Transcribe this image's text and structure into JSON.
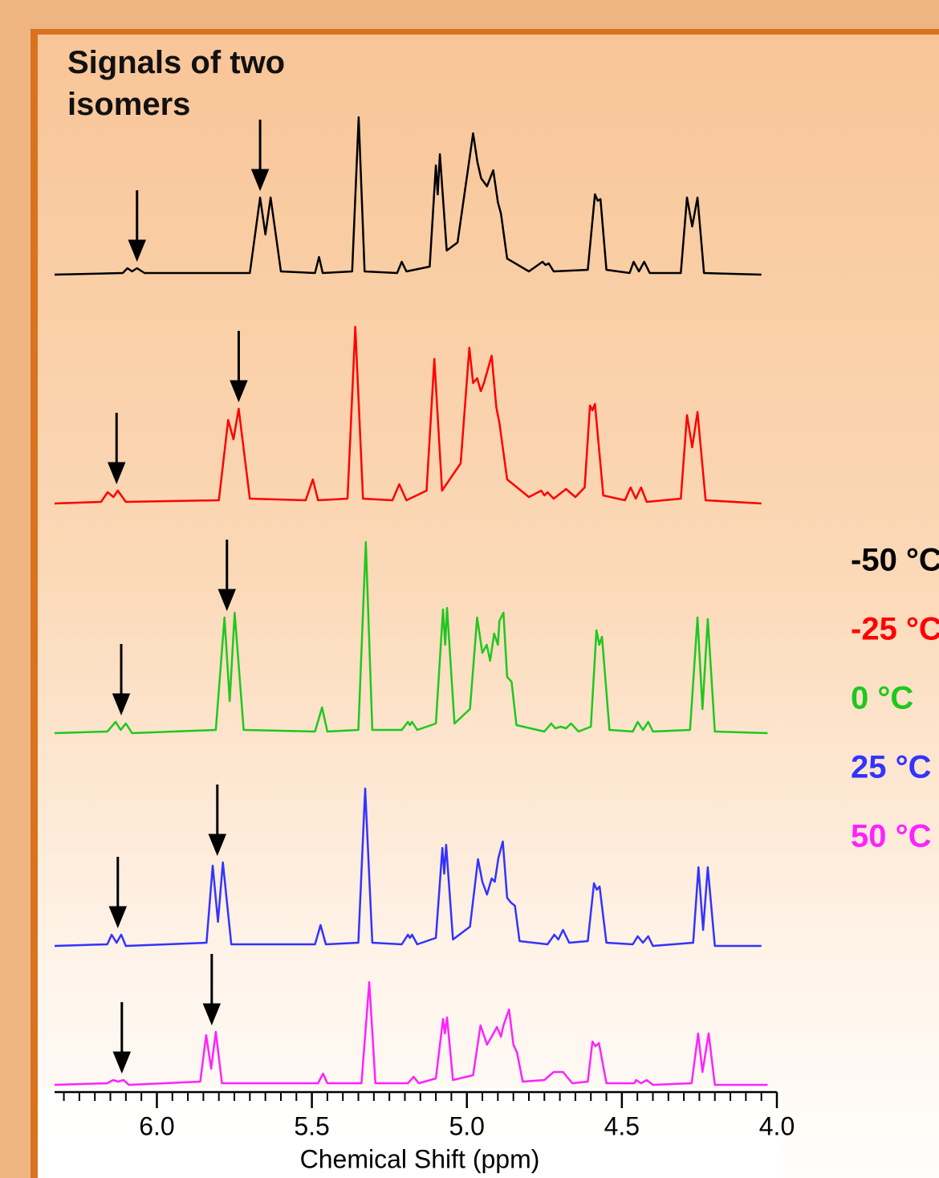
{
  "chart_data": {
    "type": "line",
    "title": "Signals of two isomers",
    "x_label": "Chemical Shift (ppm)",
    "xlim": [
      6.33,
      4.0
    ],
    "ylim": [
      0,
      120
    ],
    "xticks": [
      {
        "value": 6,
        "label": "6.0"
      },
      {
        "value": 5.5,
        "label": "5.5"
      },
      {
        "value": 5,
        "label": "5.0"
      },
      {
        "value": 4.5,
        "label": "4.5"
      },
      {
        "value": 4,
        "label": "4.0"
      }
    ],
    "xminorticks": [
      6.3,
      6.25,
      6.2,
      6.15,
      6.1,
      6.05,
      5.95,
      5.9,
      5.85,
      5.8,
      5.75,
      5.7,
      5.65,
      5.6,
      5.55,
      5.45,
      5.4,
      5.35,
      5.3,
      5.25,
      5.2,
      5.15,
      5.1,
      5.05,
      4.95,
      4.9,
      4.85,
      4.8,
      4.75,
      4.7,
      4.65,
      4.6,
      4.55,
      4.45,
      4.4,
      4.35,
      4.3,
      4.25,
      4.2,
      4.15,
      4.1,
      4.05
    ],
    "series": [
      {
        "name": "-50 °C",
        "color": "#000000",
        "arrows": [
          6.064,
          5.667
        ],
        "x": [
          6.33,
          6.11,
          6.095,
          6.08,
          6.064,
          6.04,
          5.7,
          5.667,
          5.65,
          5.633,
          5.6,
          5.49,
          5.477,
          5.465,
          5.37,
          5.349,
          5.33,
          5.225,
          5.21,
          5.195,
          5.12,
          5.1,
          5.094,
          5.087,
          5.065,
          5.03,
          4.98,
          4.966,
          4.954,
          4.935,
          4.915,
          4.9,
          4.89,
          4.87,
          4.8,
          4.756,
          4.746,
          4.736,
          4.72,
          4.61,
          4.587,
          4.578,
          4.569,
          4.55,
          4.475,
          4.462,
          4.445,
          4.428,
          4.41,
          4.31,
          4.29,
          4.273,
          4.256,
          4.235,
          4.05
        ],
        "values": [
          0,
          1,
          4,
          2,
          4,
          1,
          1,
          48,
          25,
          48,
          2,
          1,
          11,
          1,
          2,
          98,
          2,
          1,
          8,
          2,
          5,
          68,
          50,
          75,
          15,
          20,
          88,
          70,
          60,
          55,
          65,
          45,
          38,
          10,
          2,
          8,
          6,
          7,
          2,
          3,
          50,
          46,
          47,
          3,
          1,
          8,
          2,
          8,
          1,
          1,
          48,
          30,
          48,
          1,
          0
        ]
      },
      {
        "name": "-25 °C",
        "color": "#ff0000",
        "arrows": [
          6.13,
          5.736
        ],
        "x": [
          6.33,
          6.18,
          6.159,
          6.14,
          6.126,
          6.1,
          5.8,
          5.77,
          5.753,
          5.736,
          5.7,
          5.52,
          5.497,
          5.48,
          5.385,
          5.36,
          5.335,
          5.24,
          5.218,
          5.195,
          5.13,
          5.105,
          5.08,
          5.02,
          4.992,
          4.98,
          4.967,
          4.955,
          4.945,
          4.92,
          4.905,
          4.895,
          4.87,
          4.8,
          4.76,
          4.75,
          4.74,
          4.72,
          4.68,
          4.65,
          4.62,
          4.603,
          4.595,
          4.587,
          4.56,
          4.49,
          4.472,
          4.455,
          4.438,
          4.42,
          4.31,
          4.29,
          4.273,
          4.256,
          4.23,
          4.05
        ],
        "values": [
          0,
          1,
          7,
          4,
          8,
          1,
          2,
          52,
          40,
          59,
          3,
          2,
          15,
          2,
          3,
          110,
          3,
          2,
          12,
          2,
          8,
          90,
          8,
          25,
          97,
          75,
          78,
          70,
          75,
          92,
          60,
          50,
          15,
          4,
          8,
          5,
          7,
          3,
          9,
          4,
          10,
          61,
          58,
          62,
          5,
          2,
          10,
          3,
          10,
          1,
          3,
          55,
          35,
          57,
          2,
          0
        ]
      },
      {
        "name": "0 °C",
        "color": "#1ec81e",
        "arrows": [
          6.115,
          5.774
        ],
        "x": [
          6.33,
          6.16,
          6.133,
          6.117,
          6.1,
          6.08,
          5.81,
          5.782,
          5.765,
          5.749,
          5.72,
          5.49,
          5.467,
          5.45,
          5.35,
          5.326,
          5.305,
          5.21,
          5.19,
          5.184,
          5.177,
          5.16,
          5.1,
          5.077,
          5.07,
          5.064,
          5.04,
          4.99,
          4.967,
          4.95,
          4.936,
          4.925,
          4.912,
          4.9,
          4.895,
          4.882,
          4.87,
          4.856,
          4.84,
          4.75,
          4.728,
          4.715,
          4.697,
          4.68,
          4.664,
          4.64,
          4.6,
          4.582,
          4.573,
          4.564,
          4.54,
          4.465,
          4.449,
          4.432,
          4.415,
          4.4,
          4.28,
          4.256,
          4.24,
          4.223,
          4.2,
          4.03
        ],
        "values": [
          0,
          1,
          7,
          2,
          6,
          0,
          2,
          72,
          20,
          75,
          2,
          1,
          16,
          1,
          2,
          119,
          2,
          2,
          7,
          5,
          7,
          2,
          6,
          77,
          55,
          78,
          6,
          15,
          72,
          50,
          55,
          45,
          62,
          55,
          70,
          75,
          35,
          32,
          5,
          1,
          6,
          3,
          4,
          3,
          6,
          1,
          4,
          64,
          55,
          60,
          2,
          1,
          7,
          2,
          7,
          1,
          2,
          72,
          15,
          71,
          1,
          0
        ]
      },
      {
        "name": "25 °C",
        "color": "#3333ff",
        "arrows": [
          6.126,
          5.805
        ],
        "x": [
          6.33,
          6.16,
          6.146,
          6.13,
          6.115,
          6.1,
          5.84,
          5.82,
          5.803,
          5.787,
          5.76,
          5.49,
          5.472,
          5.455,
          5.35,
          5.328,
          5.305,
          5.21,
          5.19,
          5.184,
          5.177,
          5.16,
          5.1,
          5.079,
          5.073,
          5.067,
          5.045,
          4.99,
          4.964,
          4.95,
          4.935,
          4.92,
          4.91,
          4.898,
          4.884,
          4.87,
          4.858,
          4.845,
          4.83,
          4.74,
          4.718,
          4.705,
          4.69,
          4.67,
          4.61,
          4.59,
          4.581,
          4.572,
          4.55,
          4.465,
          4.449,
          4.432,
          4.415,
          4.4,
          4.27,
          4.253,
          4.238,
          4.223,
          4.2,
          4.05
        ],
        "values": [
          0,
          1,
          7,
          2,
          7,
          0,
          2,
          50,
          15,
          52,
          1,
          1,
          13,
          1,
          2,
          98,
          2,
          1,
          7,
          5,
          7,
          1,
          5,
          61,
          45,
          63,
          4,
          12,
          54,
          40,
          32,
          42,
          40,
          55,
          65,
          30,
          27,
          25,
          3,
          1,
          7,
          4,
          10,
          2,
          3,
          39,
          35,
          37,
          2,
          1,
          6,
          2,
          6,
          0,
          2,
          49,
          10,
          49,
          0,
          0
        ]
      },
      {
        "name": "50 °C",
        "color": "#ff22ff",
        "arrows": [
          6.113,
          5.823
        ],
        "x": [
          6.33,
          6.16,
          6.141,
          6.125,
          6.108,
          6.09,
          5.86,
          5.841,
          5.825,
          5.81,
          5.79,
          5.48,
          5.464,
          5.45,
          5.34,
          5.315,
          5.295,
          5.19,
          5.172,
          5.155,
          5.1,
          5.077,
          5.071,
          5.064,
          5.045,
          4.98,
          4.956,
          4.94,
          4.935,
          4.92,
          4.903,
          4.89,
          4.882,
          4.864,
          4.85,
          4.838,
          4.82,
          4.75,
          4.72,
          4.69,
          4.66,
          4.61,
          4.595,
          4.585,
          4.574,
          4.55,
          4.46,
          4.454,
          4.438,
          4.42,
          4.4,
          4.275,
          4.254,
          4.24,
          4.22,
          4.2,
          4.03
        ],
        "values": [
          0,
          1,
          3,
          2,
          3,
          0,
          2,
          31,
          10,
          33,
          1,
          1,
          7,
          1,
          1,
          64,
          1,
          1,
          5,
          1,
          4,
          41,
          32,
          42,
          3,
          6,
          37,
          28,
          25,
          30,
          36,
          30,
          37,
          47,
          25,
          20,
          2,
          3,
          8,
          8,
          1,
          2,
          27,
          24,
          26,
          1,
          1,
          3,
          1,
          3,
          0,
          1,
          32,
          8,
          32,
          0,
          0
        ]
      }
    ]
  }
}
